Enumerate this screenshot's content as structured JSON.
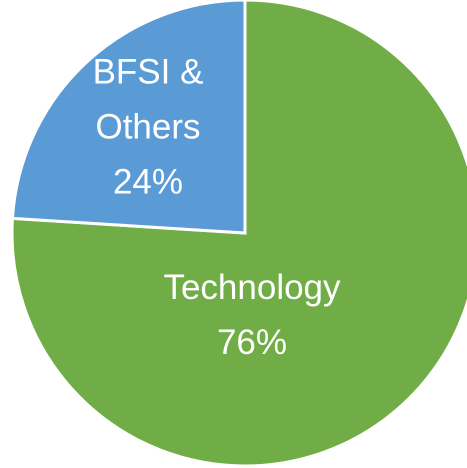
{
  "chart_data": {
    "type": "pie",
    "categories": [
      "Technology",
      "BFSI & Others"
    ],
    "values": [
      76,
      24
    ],
    "value_labels": [
      "76%",
      "24%"
    ],
    "colors": [
      "#70ad47",
      "#5b9bd5"
    ]
  }
}
